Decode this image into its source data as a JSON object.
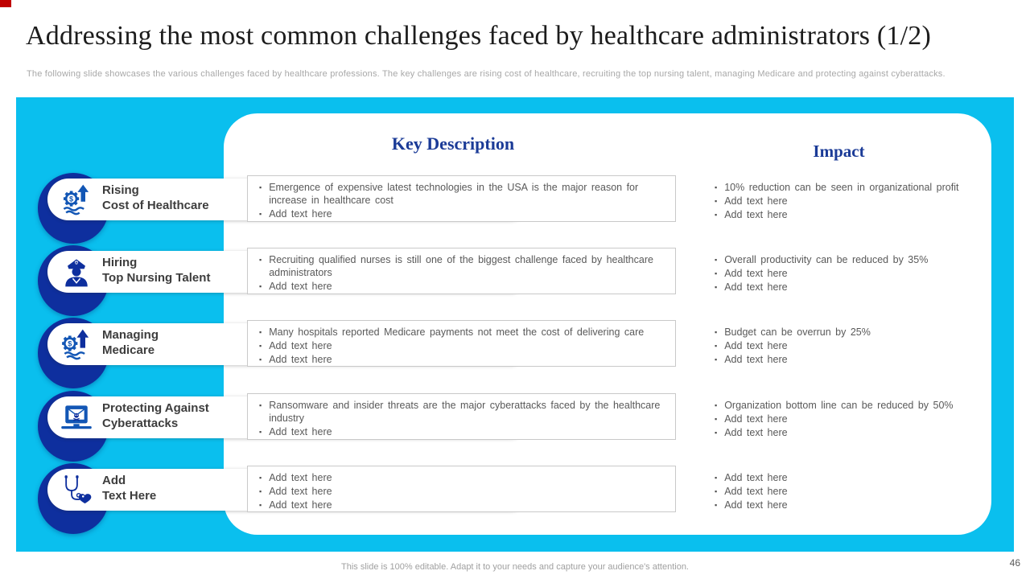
{
  "slide": {
    "title": "Addressing the most common challenges faced by healthcare administrators (1/2)",
    "subtitle": "The following slide showcases the various challenges faced by healthcare professions. The key challenges are rising cost of healthcare, recruiting the top nursing talent, managing Medicare and protecting against cyberattacks.",
    "footer": "This slide is 100% editable.  Adapt it to your needs and capture your audience's attention.",
    "page_number": "46"
  },
  "columns": {
    "description_header": "Key Description",
    "impact_header": "Impact"
  },
  "colors": {
    "accent_cyan": "#0abfee",
    "ring_navy": "#0e2f9e",
    "icon_blue": "#1256b5",
    "header_navy": "#1b3b97",
    "body_text": "#595959",
    "corner_red": "#c00000"
  },
  "rows": [
    {
      "icon": "rising-cost-icon",
      "label_line1": "Rising",
      "label_line2": "Cost of Healthcare",
      "description": [
        "Emergence of expensive latest technologies in the USA is the major reason for increase in healthcare cost",
        "Add text here"
      ],
      "impact": [
        "10% reduction can be seen in organizational profit",
        "Add text here",
        "Add text here"
      ]
    },
    {
      "icon": "nurse-icon",
      "label_line1": "Hiring",
      "label_line2": "Top Nursing Talent",
      "description": [
        "Recruiting qualified nurses is still one of the biggest challenge faced by healthcare administrators",
        "Add text here"
      ],
      "impact": [
        "Overall productivity can be reduced by 35%",
        "Add text here",
        "Add text here"
      ]
    },
    {
      "icon": "medicare-money-icon",
      "label_line1": "Managing",
      "label_line2": "Medicare",
      "description": [
        "Many hospitals reported Medicare payments not meet the cost of delivering care",
        "Add text here",
        "Add text here"
      ],
      "impact": [
        "Budget can be overrun by 25%",
        "Add text here",
        "Add text here"
      ]
    },
    {
      "icon": "cyberattack-laptop-icon",
      "label_line1": "Protecting Against",
      "label_line2": "Cyberattacks",
      "description": [
        "Ransomware and insider threats are the major cyberattacks faced by the healthcare industry",
        "Add text here"
      ],
      "impact": [
        "Organization bottom line can be reduced by 50%",
        "Add text here",
        "Add text here"
      ]
    },
    {
      "icon": "stethoscope-heart-icon",
      "label_line1": "Add",
      "label_line2": "Text Here",
      "description": [
        "Add text here",
        "Add text here",
        "Add text here"
      ],
      "impact": [
        "Add text here",
        "Add text here",
        "Add text here"
      ]
    }
  ]
}
